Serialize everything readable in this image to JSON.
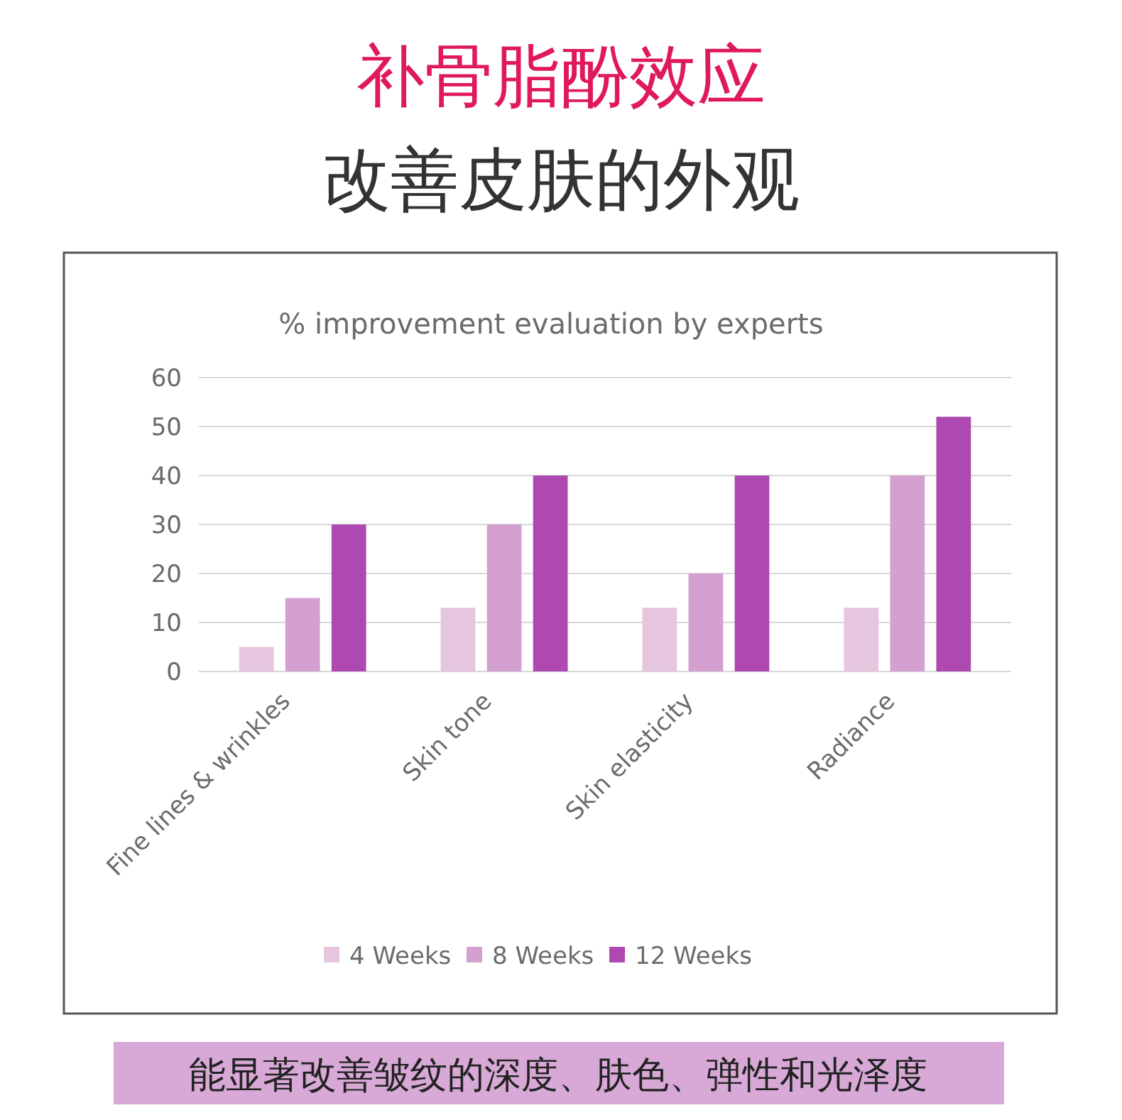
{
  "chart_data": {
    "type": "bar",
    "title": "补骨脂酚效应",
    "subtitle": "改善皮肤的外观",
    "annotations": [
      "% improvement evaluation by experts",
      "能显著改善皱纹的深度、肤色、弹性和光泽度"
    ],
    "categories": [
      "Fine lines & wrinkles",
      "Skin tone",
      "Skin elasticity",
      "Radiance"
    ],
    "series": [
      {
        "name": "4 Weeks",
        "color": "#e6c5df",
        "values": [
          5,
          13,
          13,
          13
        ]
      },
      {
        "name": "8 Weeks",
        "color": "#d4a0cf",
        "values": [
          15,
          30,
          20,
          40
        ]
      },
      {
        "name": "12 Weeks",
        "color": "#ad49b0",
        "values": [
          30,
          40,
          40,
          52
        ]
      }
    ],
    "ylim": [
      0,
      60
    ],
    "yticks": [
      0,
      10,
      20,
      30,
      40,
      50,
      60
    ],
    "grid": "y",
    "legend": "bottom"
  }
}
